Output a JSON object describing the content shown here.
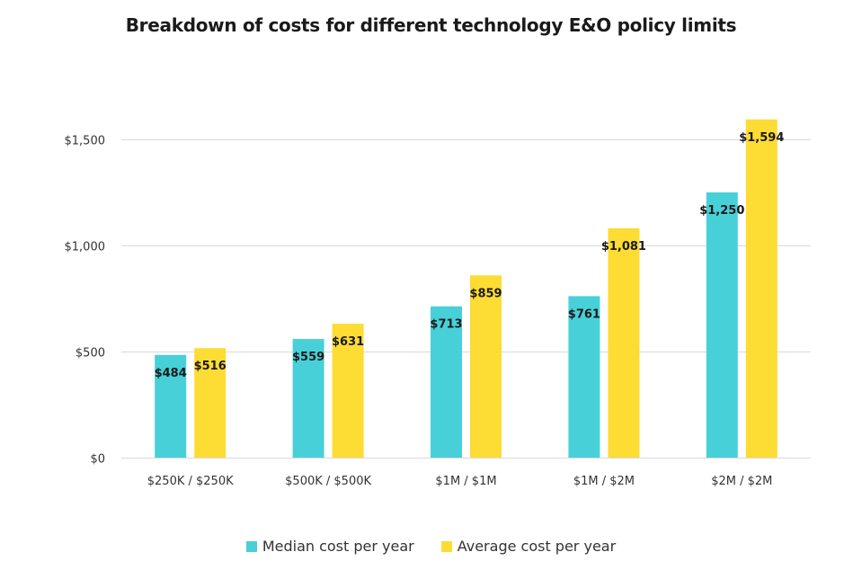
{
  "chart_data": {
    "type": "bar",
    "title": "Breakdown of costs for different technology E&O policy limits",
    "xlabel": "",
    "ylabel": "",
    "categories": [
      "$250K / $250K",
      "$500K / $500K",
      "$1M / $1M",
      "$1M / $2M",
      "$2M / $2M"
    ],
    "series": [
      {
        "name": "Median cost per year",
        "color": "#48D0D8",
        "values": [
          484,
          559,
          713,
          761,
          1250
        ],
        "labels": [
          "$484",
          "$559",
          "$713",
          "$761",
          "$1,250"
        ]
      },
      {
        "name": "Average cost per year",
        "color": "#FDDC34",
        "values": [
          516,
          631,
          859,
          1081,
          1594
        ],
        "labels": [
          "$516",
          "$631",
          "$859",
          "$1,081",
          "$1,594"
        ]
      }
    ],
    "ylim": [
      0,
      1594
    ],
    "yticks": [
      0,
      500,
      1000,
      1500
    ],
    "ytick_labels": [
      "$0",
      "$500",
      "$1,000",
      "$1,500"
    ],
    "grid": true,
    "legend_position": "bottom"
  }
}
